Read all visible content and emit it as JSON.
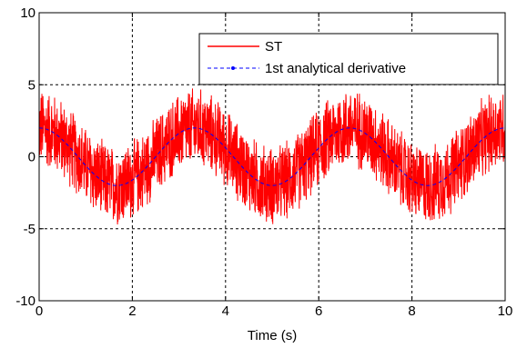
{
  "chart_data": {
    "type": "line",
    "title": "",
    "xlabel": "Time (s)",
    "ylabel": "",
    "xlim": [
      0,
      10
    ],
    "ylim": [
      -10,
      10
    ],
    "xticks": [
      0,
      2,
      4,
      6,
      8,
      10
    ],
    "yticks": [
      -10,
      -5,
      0,
      5,
      10
    ],
    "xtick_labels": [
      "0",
      "2",
      "4",
      "6",
      "8",
      "10"
    ],
    "ytick_labels": [
      "-10",
      "-5",
      "0",
      "5",
      "10"
    ],
    "grid": true,
    "grid_style": "dashed",
    "legend_position": "top-right",
    "series": [
      {
        "name": "ST",
        "color": "#ff0000",
        "style": "solid",
        "description_values": {
          "x": [
            0,
            1.667,
            3.333,
            5.0,
            6.667,
            8.333,
            10
          ],
          "y_center": [
            2,
            -2,
            2,
            -2,
            2,
            -2,
            2
          ],
          "noise_amplitude": 3
        }
      },
      {
        "name": "1st analytical derivative",
        "color": "#0000ff",
        "style": "dashed-dot",
        "x": [
          0,
          0.833,
          1.667,
          2.5,
          3.333,
          4.167,
          5.0,
          5.833,
          6.667,
          7.5,
          8.333,
          9.167,
          10
        ],
        "y": [
          2,
          0,
          -2,
          0,
          2,
          0,
          -2,
          0,
          2,
          0,
          -2,
          0,
          2
        ]
      }
    ]
  }
}
